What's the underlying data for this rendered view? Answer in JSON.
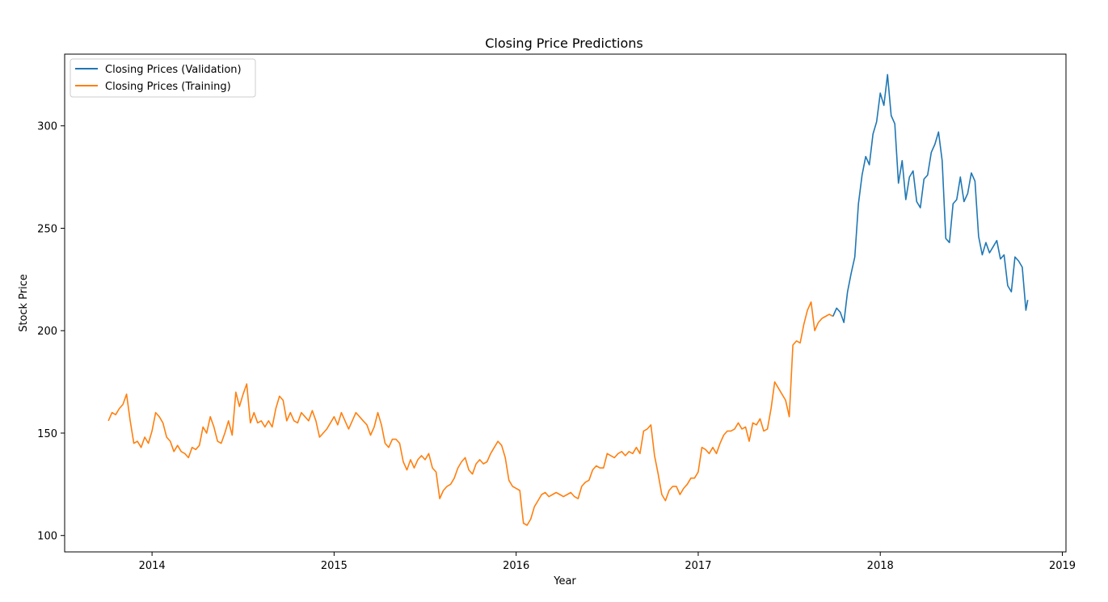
{
  "chart_data": {
    "type": "line",
    "title": "Closing Price Predictions",
    "xlabel": "Year",
    "ylabel": "Stock Price",
    "xlim": [
      2013.52,
      2019.02
    ],
    "ylim": [
      92,
      335
    ],
    "x_ticks": [
      2014,
      2015,
      2016,
      2017,
      2018,
      2019
    ],
    "x_tick_labels": [
      "2014",
      "2015",
      "2016",
      "2017",
      "2018",
      "2019"
    ],
    "y_ticks": [
      100,
      150,
      200,
      250,
      300
    ],
    "y_tick_labels": [
      "100",
      "150",
      "200",
      "250",
      "300"
    ],
    "grid": false,
    "legend_position": "top-left",
    "series": [
      {
        "name": "Closing Prices (Validation)",
        "color": "#1f77b4",
        "points": [
          [
            2017.74,
            207
          ],
          [
            2017.76,
            211
          ],
          [
            2017.78,
            209
          ],
          [
            2017.8,
            204
          ],
          [
            2017.82,
            219
          ],
          [
            2017.84,
            228
          ],
          [
            2017.86,
            236
          ],
          [
            2017.88,
            262
          ],
          [
            2017.9,
            276
          ],
          [
            2017.92,
            285
          ],
          [
            2017.94,
            281
          ],
          [
            2017.96,
            296
          ],
          [
            2017.98,
            302
          ],
          [
            2018.0,
            316
          ],
          [
            2018.02,
            310
          ],
          [
            2018.04,
            325
          ],
          [
            2018.06,
            305
          ],
          [
            2018.08,
            301
          ],
          [
            2018.1,
            272
          ],
          [
            2018.12,
            283
          ],
          [
            2018.14,
            264
          ],
          [
            2018.16,
            275
          ],
          [
            2018.18,
            278
          ],
          [
            2018.2,
            263
          ],
          [
            2018.22,
            260
          ],
          [
            2018.24,
            274
          ],
          [
            2018.26,
            276
          ],
          [
            2018.28,
            287
          ],
          [
            2018.3,
            291
          ],
          [
            2018.32,
            297
          ],
          [
            2018.34,
            283
          ],
          [
            2018.36,
            245
          ],
          [
            2018.38,
            243
          ],
          [
            2018.4,
            262
          ],
          [
            2018.42,
            264
          ],
          [
            2018.44,
            275
          ],
          [
            2018.46,
            263
          ],
          [
            2018.48,
            267
          ],
          [
            2018.5,
            277
          ],
          [
            2018.52,
            273
          ],
          [
            2018.54,
            246
          ],
          [
            2018.56,
            237
          ],
          [
            2018.58,
            243
          ],
          [
            2018.6,
            238
          ],
          [
            2018.62,
            241
          ],
          [
            2018.64,
            244
          ],
          [
            2018.66,
            235
          ],
          [
            2018.68,
            237
          ],
          [
            2018.7,
            222
          ],
          [
            2018.72,
            219
          ],
          [
            2018.74,
            236
          ],
          [
            2018.76,
            234
          ],
          [
            2018.78,
            231
          ],
          [
            2018.8,
            210
          ],
          [
            2018.81,
            215
          ]
        ]
      },
      {
        "name": "Closing Prices (Training)",
        "color": "#ff7f0e",
        "points": [
          [
            2013.76,
            156
          ],
          [
            2013.78,
            160
          ],
          [
            2013.8,
            159
          ],
          [
            2013.82,
            162
          ],
          [
            2013.84,
            164
          ],
          [
            2013.86,
            169
          ],
          [
            2013.88,
            156
          ],
          [
            2013.9,
            145
          ],
          [
            2013.92,
            146
          ],
          [
            2013.94,
            143
          ],
          [
            2013.96,
            148
          ],
          [
            2013.98,
            145
          ],
          [
            2014.0,
            151
          ],
          [
            2014.02,
            160
          ],
          [
            2014.04,
            158
          ],
          [
            2014.06,
            155
          ],
          [
            2014.08,
            148
          ],
          [
            2014.1,
            146
          ],
          [
            2014.12,
            141
          ],
          [
            2014.14,
            144
          ],
          [
            2014.16,
            141
          ],
          [
            2014.18,
            140
          ],
          [
            2014.2,
            138
          ],
          [
            2014.22,
            143
          ],
          [
            2014.24,
            142
          ],
          [
            2014.26,
            144
          ],
          [
            2014.28,
            153
          ],
          [
            2014.3,
            150
          ],
          [
            2014.32,
            158
          ],
          [
            2014.34,
            153
          ],
          [
            2014.36,
            146
          ],
          [
            2014.38,
            145
          ],
          [
            2014.4,
            150
          ],
          [
            2014.42,
            156
          ],
          [
            2014.44,
            149
          ],
          [
            2014.46,
            170
          ],
          [
            2014.48,
            163
          ],
          [
            2014.5,
            169
          ],
          [
            2014.52,
            174
          ],
          [
            2014.54,
            155
          ],
          [
            2014.56,
            160
          ],
          [
            2014.58,
            155
          ],
          [
            2014.6,
            156
          ],
          [
            2014.62,
            153
          ],
          [
            2014.64,
            156
          ],
          [
            2014.66,
            153
          ],
          [
            2014.68,
            162
          ],
          [
            2014.7,
            168
          ],
          [
            2014.72,
            166
          ],
          [
            2014.74,
            156
          ],
          [
            2014.76,
            160
          ],
          [
            2014.78,
            156
          ],
          [
            2014.8,
            155
          ],
          [
            2014.82,
            160
          ],
          [
            2014.84,
            158
          ],
          [
            2014.86,
            156
          ],
          [
            2014.88,
            161
          ],
          [
            2014.9,
            156
          ],
          [
            2014.92,
            148
          ],
          [
            2014.94,
            150
          ],
          [
            2014.96,
            152
          ],
          [
            2014.98,
            155
          ],
          [
            2015.0,
            158
          ],
          [
            2015.02,
            154
          ],
          [
            2015.04,
            160
          ],
          [
            2015.06,
            156
          ],
          [
            2015.08,
            152
          ],
          [
            2015.1,
            156
          ],
          [
            2015.12,
            160
          ],
          [
            2015.14,
            158
          ],
          [
            2015.16,
            156
          ],
          [
            2015.18,
            154
          ],
          [
            2015.2,
            149
          ],
          [
            2015.22,
            153
          ],
          [
            2015.24,
            160
          ],
          [
            2015.26,
            154
          ],
          [
            2015.28,
            145
          ],
          [
            2015.3,
            143
          ],
          [
            2015.32,
            147
          ],
          [
            2015.34,
            147
          ],
          [
            2015.36,
            145
          ],
          [
            2015.38,
            136
          ],
          [
            2015.4,
            132
          ],
          [
            2015.42,
            137
          ],
          [
            2015.44,
            133
          ],
          [
            2015.46,
            137
          ],
          [
            2015.48,
            139
          ],
          [
            2015.5,
            137
          ],
          [
            2015.52,
            140
          ],
          [
            2015.54,
            133
          ],
          [
            2015.56,
            131
          ],
          [
            2015.58,
            118
          ],
          [
            2015.6,
            122
          ],
          [
            2015.62,
            124
          ],
          [
            2015.64,
            125
          ],
          [
            2015.66,
            128
          ],
          [
            2015.68,
            133
          ],
          [
            2015.7,
            136
          ],
          [
            2015.72,
            138
          ],
          [
            2015.74,
            132
          ],
          [
            2015.76,
            130
          ],
          [
            2015.78,
            135
          ],
          [
            2015.8,
            137
          ],
          [
            2015.82,
            135
          ],
          [
            2015.84,
            136
          ],
          [
            2015.86,
            140
          ],
          [
            2015.88,
            143
          ],
          [
            2015.9,
            146
          ],
          [
            2015.92,
            144
          ],
          [
            2015.94,
            138
          ],
          [
            2015.96,
            127
          ],
          [
            2015.98,
            124
          ],
          [
            2016.0,
            123
          ],
          [
            2016.02,
            122
          ],
          [
            2016.04,
            106
          ],
          [
            2016.06,
            105
          ],
          [
            2016.08,
            108
          ],
          [
            2016.1,
            114
          ],
          [
            2016.12,
            117
          ],
          [
            2016.14,
            120
          ],
          [
            2016.16,
            121
          ],
          [
            2016.18,
            119
          ],
          [
            2016.2,
            120
          ],
          [
            2016.22,
            121
          ],
          [
            2016.24,
            120
          ],
          [
            2016.26,
            119
          ],
          [
            2016.28,
            120
          ],
          [
            2016.3,
            121
          ],
          [
            2016.32,
            119
          ],
          [
            2016.34,
            118
          ],
          [
            2016.36,
            124
          ],
          [
            2016.38,
            126
          ],
          [
            2016.4,
            127
          ],
          [
            2016.42,
            132
          ],
          [
            2016.44,
            134
          ],
          [
            2016.46,
            133
          ],
          [
            2016.48,
            133
          ],
          [
            2016.5,
            140
          ],
          [
            2016.52,
            139
          ],
          [
            2016.54,
            138
          ],
          [
            2016.56,
            140
          ],
          [
            2016.58,
            141
          ],
          [
            2016.6,
            139
          ],
          [
            2016.62,
            141
          ],
          [
            2016.64,
            140
          ],
          [
            2016.66,
            143
          ],
          [
            2016.68,
            140
          ],
          [
            2016.7,
            151
          ],
          [
            2016.72,
            152
          ],
          [
            2016.74,
            154
          ],
          [
            2016.76,
            139
          ],
          [
            2016.78,
            130
          ],
          [
            2016.8,
            120
          ],
          [
            2016.82,
            117
          ],
          [
            2016.84,
            122
          ],
          [
            2016.86,
            124
          ],
          [
            2016.88,
            124
          ],
          [
            2016.9,
            120
          ],
          [
            2016.92,
            123
          ],
          [
            2016.94,
            125
          ],
          [
            2016.96,
            128
          ],
          [
            2016.98,
            128
          ],
          [
            2017.0,
            131
          ],
          [
            2017.02,
            143
          ],
          [
            2017.04,
            142
          ],
          [
            2017.06,
            140
          ],
          [
            2017.08,
            143
          ],
          [
            2017.1,
            140
          ],
          [
            2017.12,
            145
          ],
          [
            2017.14,
            149
          ],
          [
            2017.16,
            151
          ],
          [
            2017.18,
            151
          ],
          [
            2017.2,
            152
          ],
          [
            2017.22,
            155
          ],
          [
            2017.24,
            152
          ],
          [
            2017.26,
            153
          ],
          [
            2017.28,
            146
          ],
          [
            2017.3,
            155
          ],
          [
            2017.32,
            154
          ],
          [
            2017.34,
            157
          ],
          [
            2017.36,
            151
          ],
          [
            2017.38,
            152
          ],
          [
            2017.4,
            162
          ],
          [
            2017.42,
            175
          ],
          [
            2017.44,
            172
          ],
          [
            2017.46,
            169
          ],
          [
            2017.48,
            166
          ],
          [
            2017.5,
            158
          ],
          [
            2017.52,
            193
          ],
          [
            2017.54,
            195
          ],
          [
            2017.56,
            194
          ],
          [
            2017.58,
            203
          ],
          [
            2017.6,
            210
          ],
          [
            2017.62,
            214
          ],
          [
            2017.64,
            200
          ],
          [
            2017.66,
            204
          ],
          [
            2017.68,
            206
          ],
          [
            2017.7,
            207
          ],
          [
            2017.72,
            208
          ],
          [
            2017.74,
            207
          ]
        ]
      }
    ]
  }
}
